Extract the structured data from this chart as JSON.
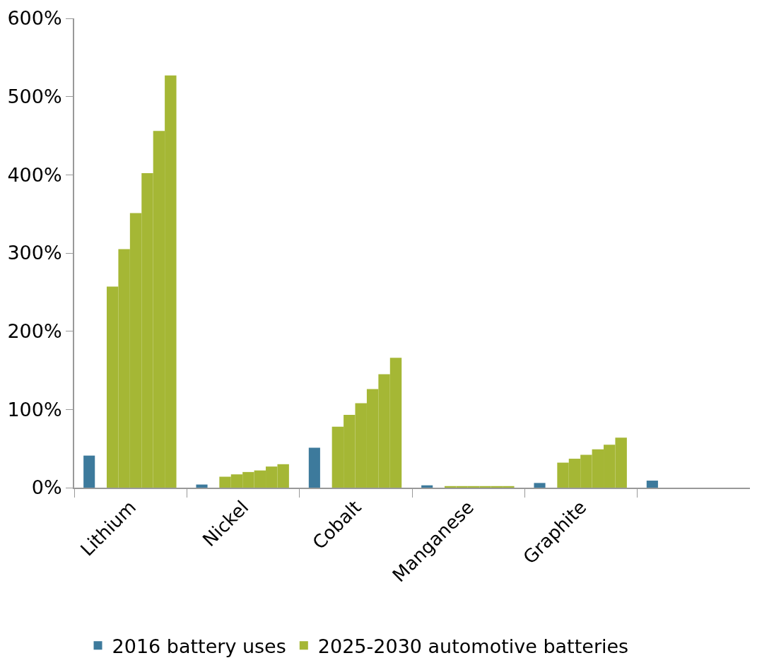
{
  "chart_data": {
    "type": "bar",
    "categories": [
      "Lithium",
      "Nickel",
      "Cobalt",
      "Manganese",
      "Graphite",
      null
    ],
    "series": [
      {
        "name": "2016 battery uses",
        "color": "#3d7a9c",
        "values": [
          41,
          4,
          51,
          3,
          6,
          9
        ]
      },
      {
        "name": "2025-2030 automotive batteries",
        "color": "#a5b735",
        "values": [
          257,
          14,
          78,
          2,
          32,
          null
        ]
      },
      {
        "color": "#a5b735",
        "values": [
          305,
          17,
          93,
          2,
          37,
          null
        ]
      },
      {
        "color": "#a5b735",
        "values": [
          351,
          20,
          108,
          2,
          42,
          null
        ]
      },
      {
        "color": "#a5b735",
        "values": [
          402,
          22,
          126,
          2,
          49,
          null
        ]
      },
      {
        "color": "#a5b735",
        "values": [
          456,
          27,
          145,
          2,
          55,
          null
        ]
      },
      {
        "color": "#a5b735",
        "values": [
          527,
          30,
          166,
          2,
          64,
          null
        ]
      }
    ],
    "ylim": [
      0,
      600
    ],
    "yticks": [
      {
        "value": 0,
        "label": "0%"
      },
      {
        "value": 100,
        "label": "100%"
      },
      {
        "value": 200,
        "label": "200%"
      },
      {
        "value": 300,
        "label": "300%"
      },
      {
        "value": 400,
        "label": "400%"
      },
      {
        "value": 500,
        "label": "500%"
      },
      {
        "value": 600,
        "label": "600%"
      }
    ],
    "legend": "bottom"
  }
}
